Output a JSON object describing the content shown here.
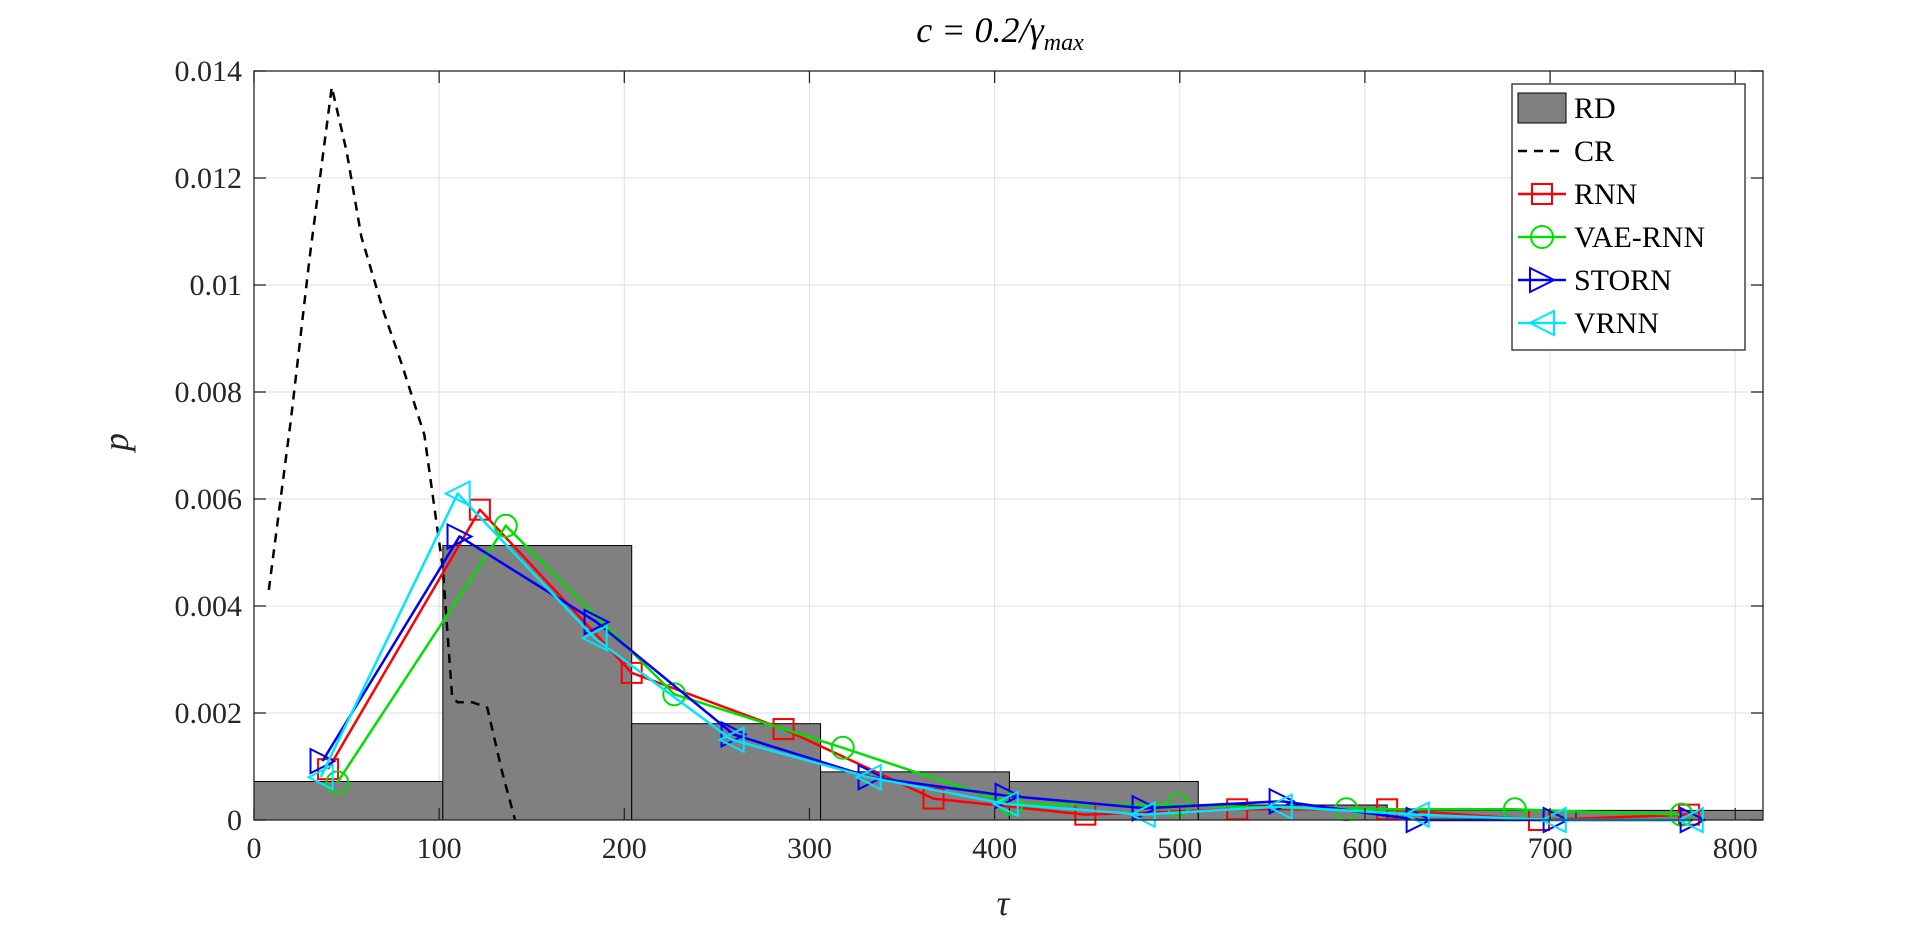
{
  "chart_data": {
    "type": "line",
    "title_prefix": "c = 0.2/",
    "title_gamma": "γ",
    "title_sub": "max",
    "xlabel": "τ",
    "ylabel": "p",
    "xlim": [
      0,
      815
    ],
    "ylim": [
      0,
      0.014
    ],
    "grid": true,
    "legend_placement": "top-right",
    "x_ticks": [
      0,
      100,
      200,
      300,
      400,
      500,
      600,
      700,
      800
    ],
    "x_tick_labels": [
      "0",
      "100",
      "200",
      "300",
      "400",
      "500",
      "600",
      "700",
      "800"
    ],
    "y_ticks": [
      0,
      0.002,
      0.004,
      0.006,
      0.008,
      0.01,
      0.012,
      0.014
    ],
    "y_tick_labels": [
      "0",
      "0.002",
      "0.004",
      "0.006",
      "0.008",
      "0.01",
      "0.012",
      "0.014"
    ],
    "histogram": {
      "name": "RD",
      "color": "#808080",
      "bins": [
        {
          "x0": 0,
          "x1": 102,
          "value": 0.00072
        },
        {
          "x0": 102,
          "x1": 204,
          "value": 0.00513
        },
        {
          "x0": 204,
          "x1": 306,
          "value": 0.0018
        },
        {
          "x0": 306,
          "x1": 408,
          "value": 0.0009
        },
        {
          "x0": 408,
          "x1": 510,
          "value": 0.00072
        },
        {
          "x0": 510,
          "x1": 612,
          "value": 0.00028
        },
        {
          "x0": 612,
          "x1": 714,
          "value": 0.00018
        },
        {
          "x0": 714,
          "x1": 815,
          "value": 0.00018
        }
      ]
    },
    "series": [
      {
        "name": "CR",
        "color": "#000000",
        "dash": true,
        "marker": "none",
        "x": [
          8,
          20,
          30,
          42,
          50,
          58,
          70,
          80,
          92,
          102,
          107,
          110,
          118,
          126,
          134,
          141
        ],
        "y": [
          0.0043,
          0.0075,
          0.0105,
          0.0137,
          0.0125,
          0.0109,
          0.0095,
          0.0085,
          0.0072,
          0.0047,
          0.0023,
          0.0022,
          0.0022,
          0.0021,
          0.0009,
          0.0
        ]
      },
      {
        "name": "RNN",
        "color": "#ff0000",
        "dash": false,
        "marker": "square",
        "x": [
          40,
          122,
          204,
          286,
          367,
          449,
          531,
          612,
          694,
          775
        ],
        "y": [
          0.00095,
          0.0058,
          0.00275,
          0.0017,
          0.0004,
          0.0001,
          0.0002,
          0.0002,
          0.0,
          0.0001
        ]
      },
      {
        "name": "VAE-RNN",
        "color": "#00e000",
        "dash": false,
        "marker": "circle",
        "x": [
          45,
          136,
          227,
          318,
          409,
          499,
          590,
          681,
          771
        ],
        "y": [
          0.0007,
          0.0055,
          0.00235,
          0.00135,
          0.0003,
          0.00028,
          0.0002,
          0.0002,
          0.0001
        ]
      },
      {
        "name": "STORN",
        "color": "#0000ff",
        "dash": false,
        "marker": "triangle-right",
        "x": [
          37,
          111,
          185,
          259,
          333,
          407,
          481,
          555,
          629,
          703,
          777
        ],
        "y": [
          0.0011,
          0.0053,
          0.0037,
          0.0016,
          0.0008,
          0.00045,
          0.00022,
          0.00035,
          0.0,
          0.0,
          0.0
        ]
      },
      {
        "name": "VRNN",
        "color": "#00e5ff",
        "dash": false,
        "marker": "triangle-left",
        "x": [
          36,
          110,
          184,
          258,
          332,
          406,
          480,
          554,
          628,
          702,
          776
        ],
        "y": [
          0.0008,
          0.0061,
          0.0034,
          0.0015,
          0.0008,
          0.0003,
          0.0001,
          0.00025,
          0.0001,
          0.0,
          0.0
        ]
      }
    ]
  }
}
